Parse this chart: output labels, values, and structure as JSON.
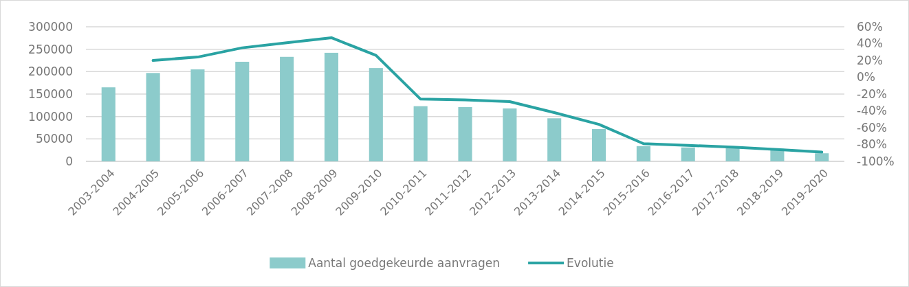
{
  "chart_data": {
    "type": "bar",
    "categories": [
      "2003-2004",
      "2004-2005",
      "2005-2006",
      "2006-2007",
      "2007-2008",
      "2008-2009",
      "2009-2010",
      "2010-2011",
      "2011-2012",
      "2012-2013",
      "2013-2014",
      "2014-2015",
      "2015-2016",
      "2016-2017",
      "2017-2018",
      "2018-2019",
      "2019-2020"
    ],
    "series": [
      {
        "name": "Aantal goedgekeurde aanvragen",
        "color": "#8ccbcb",
        "values": [
          165000,
          197000,
          205000,
          222000,
          233000,
          242000,
          208000,
          123000,
          121000,
          118000,
          96000,
          72000,
          34000,
          31000,
          30000,
          28000,
          18000
        ]
      },
      {
        "name": "Evolutie",
        "type": "line",
        "axis": "y2",
        "color": "#2aa3a3",
        "values": [
          null,
          20,
          24,
          35,
          41,
          47,
          26,
          -26,
          -27,
          -29,
          -42,
          -56,
          -79,
          -81,
          -83,
          -86,
          -89
        ]
      }
    ],
    "ylim": [
      0,
      300000
    ],
    "yticks": [
      0,
      50000,
      100000,
      150000,
      200000,
      250000,
      300000
    ],
    "y2lim": [
      -100,
      60
    ],
    "y2ticks": [
      {
        "value": -100,
        "label": "-100%"
      },
      {
        "value": -80,
        "label": "-80%"
      },
      {
        "value": -60,
        "label": "-60%"
      },
      {
        "value": -40,
        "label": "-40%"
      },
      {
        "value": -20,
        "label": "-20%"
      },
      {
        "value": 0,
        "label": "0%"
      },
      {
        "value": 20,
        "label": "20%"
      },
      {
        "value": 40,
        "label": "40%"
      },
      {
        "value": 60,
        "label": "60%"
      }
    ],
    "grid": "y",
    "legend": "bottom",
    "marker": "none",
    "line_style": "solid"
  }
}
